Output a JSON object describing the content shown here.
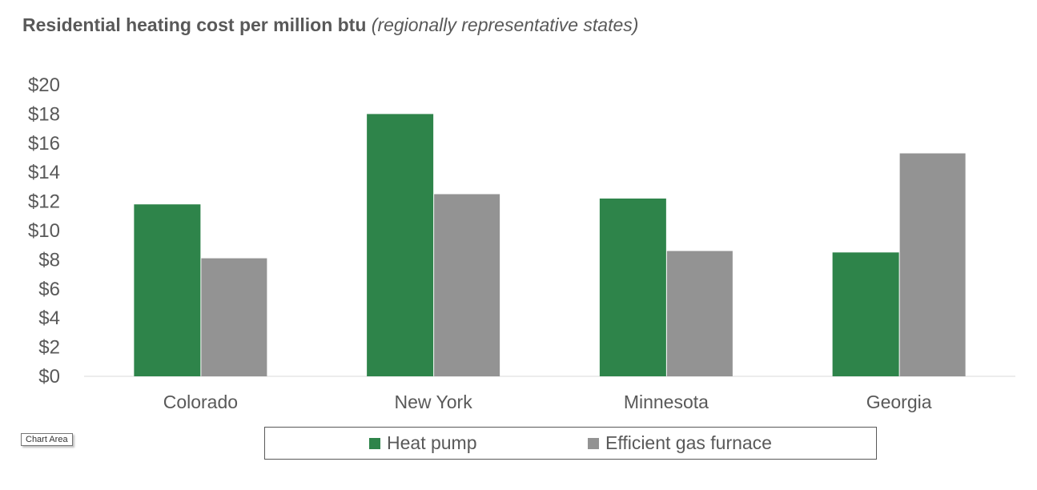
{
  "title": {
    "main": "Residential heating cost per million btu",
    "sub": "(regionally representative states)"
  },
  "tooltip": "Chart Area",
  "colors": {
    "heat_pump": "#2e844a",
    "gas_furnace": "#939393",
    "axis_text": "#595959",
    "axis_line": "#d9d9d9"
  },
  "chart_data": {
    "type": "bar",
    "title": "Residential heating cost per million btu (regionally representative states)",
    "categories": [
      "Colorado",
      "New York",
      "Minnesota",
      "Georgia"
    ],
    "series": [
      {
        "name": "Heat pump",
        "values": [
          11.8,
          18.0,
          12.2,
          8.5
        ]
      },
      {
        "name": "Efficient gas furnace",
        "values": [
          8.1,
          12.5,
          8.6,
          15.3
        ]
      }
    ],
    "yticks": [
      "$0",
      "$2",
      "$4",
      "$6",
      "$8",
      "$10",
      "$12",
      "$14",
      "$16",
      "$18",
      "$20"
    ],
    "ylim": [
      0,
      20
    ],
    "grid": false,
    "legend": "bottom"
  }
}
